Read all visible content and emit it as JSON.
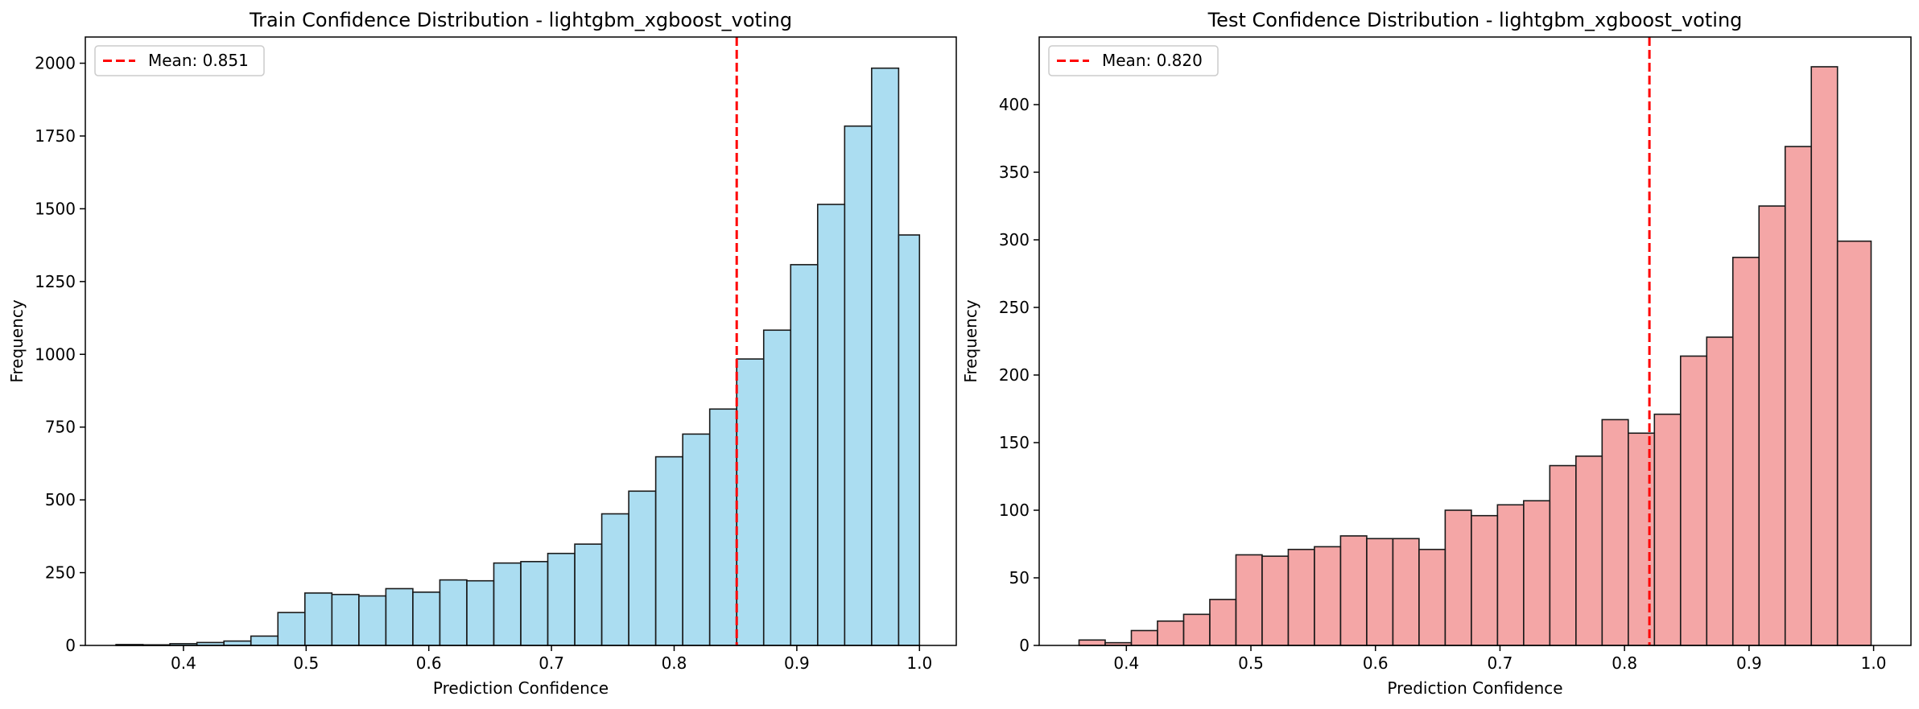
{
  "chart_data": [
    {
      "type": "bar",
      "title": "Train Confidence Distribution - lightgbm_xgboost_voting",
      "xlabel": "Prediction Confidence",
      "ylabel": "Frequency",
      "xlim": [
        0.32,
        1.03
      ],
      "ylim": [
        0,
        2090
      ],
      "xticks": [
        0.4,
        0.5,
        0.6,
        0.7,
        0.8,
        0.9,
        1.0
      ],
      "xtick_labels": [
        "0.4",
        "0.5",
        "0.6",
        "0.7",
        "0.8",
        "0.9",
        "1.0"
      ],
      "yticks": [
        0,
        250,
        500,
        750,
        1000,
        1250,
        1500,
        1750,
        2000
      ],
      "ytick_labels": [
        "0",
        "250",
        "500",
        "750",
        "1000",
        "1250",
        "1500",
        "1750",
        "2000"
      ],
      "bin_edges": [
        0.345,
        0.367,
        0.389,
        0.411,
        0.433,
        0.455,
        0.477,
        0.499,
        0.521,
        0.543,
        0.565,
        0.587,
        0.609,
        0.631,
        0.653,
        0.675,
        0.697,
        0.719,
        0.741,
        0.763,
        0.785,
        0.807,
        0.829,
        0.851,
        0.873,
        0.895,
        0.917,
        0.939,
        0.961,
        0.983,
        1.0
      ],
      "values": [
        3,
        2,
        6,
        10,
        15,
        32,
        113,
        180,
        175,
        170,
        195,
        183,
        225,
        222,
        283,
        288,
        316,
        348,
        452,
        530,
        648,
        726,
        812,
        984,
        1083,
        1308,
        1515,
        1784,
        1983,
        1410
      ],
      "bar_color": "#87CEEB",
      "mean_line": {
        "value": 0.851,
        "color": "#ff0000",
        "label": "Mean: 0.851"
      },
      "legend": "top-left"
    },
    {
      "type": "bar",
      "title": "Test Confidence Distribution - lightgbm_xgboost_voting",
      "xlabel": "Prediction Confidence",
      "ylabel": "Frequency",
      "xlim": [
        0.33,
        1.03
      ],
      "ylim": [
        0,
        450
      ],
      "xticks": [
        0.4,
        0.5,
        0.6,
        0.7,
        0.8,
        0.9,
        1.0
      ],
      "xtick_labels": [
        "0.4",
        "0.5",
        "0.6",
        "0.7",
        "0.8",
        "0.9",
        "1.0"
      ],
      "yticks": [
        0,
        50,
        100,
        150,
        200,
        250,
        300,
        350,
        400
      ],
      "ytick_labels": [
        "0",
        "50",
        "100",
        "150",
        "200",
        "250",
        "300",
        "350",
        "400"
      ],
      "bin_edges": [
        0.362,
        0.383,
        0.404,
        0.425,
        0.446,
        0.467,
        0.488,
        0.509,
        0.53,
        0.551,
        0.572,
        0.593,
        0.614,
        0.635,
        0.656,
        0.677,
        0.698,
        0.719,
        0.74,
        0.761,
        0.782,
        0.803,
        0.824,
        0.845,
        0.866,
        0.887,
        0.908,
        0.929,
        0.95,
        0.971,
        0.998
      ],
      "values": [
        4,
        2,
        11,
        18,
        23,
        34,
        67,
        66,
        71,
        73,
        81,
        79,
        79,
        71,
        100,
        96,
        104,
        107,
        133,
        140,
        167,
        157,
        171,
        214,
        228,
        287,
        325,
        369,
        428,
        299
      ],
      "bar_color": "#F08080",
      "mean_line": {
        "value": 0.82,
        "color": "#ff0000",
        "label": "Mean: 0.820"
      },
      "legend": "top-left"
    }
  ]
}
